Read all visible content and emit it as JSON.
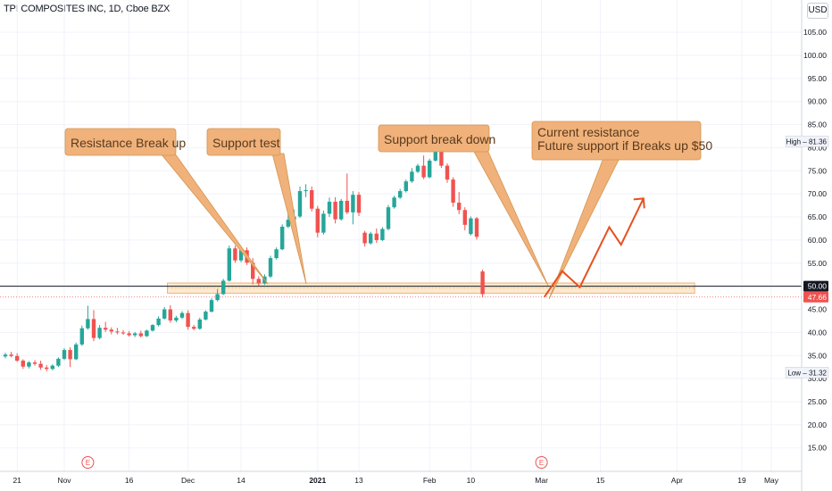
{
  "header": {
    "symbol_line": "TPI COMPOSITES INC, 1D, Cboe BZX"
  },
  "currency_button": "USD",
  "colors": {
    "up": "#26a69a",
    "down": "#ef5350",
    "callout_fill": "#f0b27a",
    "callout_stroke": "#d4934f",
    "zone_fill": "#fde9cf",
    "arrow": "#e8501f",
    "price_line": "#131722"
  },
  "chart_data": {
    "type": "candlestick",
    "title": "TPI COMPOSITES INC, 1D, Cboe BZX",
    "ylim": [
      10.5,
      108.5
    ],
    "y_ticks": [
      15,
      20,
      25,
      30,
      35,
      40,
      45,
      50,
      55,
      60,
      65,
      70,
      75,
      80,
      85,
      90,
      95,
      100,
      105
    ],
    "y_tick_labels": [
      "15.00",
      "20.00",
      "25.00",
      "30.00",
      "35.00",
      "40.00",
      "45.00",
      "50.00",
      "55.00",
      "60.00",
      "65.00",
      "70.00",
      "75.00",
      "80.00",
      "85.00",
      "90.00",
      "95.00",
      "100.00",
      "105.00"
    ],
    "x_ticks": [
      {
        "label": "21",
        "bar": 2
      },
      {
        "label": "Nov",
        "bar": 10
      },
      {
        "label": "16",
        "bar": 21
      },
      {
        "label": "Dec",
        "bar": 31
      },
      {
        "label": "14",
        "bar": 40
      },
      {
        "label": "2021",
        "bar": 53
      },
      {
        "label": "13",
        "bar": 60
      },
      {
        "label": "Feb",
        "bar": 72
      },
      {
        "label": "10",
        "bar": 79
      },
      {
        "label": "Mar",
        "bar": 91
      },
      {
        "label": "15",
        "bar": 101
      },
      {
        "label": "Apr",
        "bar": 114
      },
      {
        "label": "19",
        "bar": 125
      },
      {
        "label": "May",
        "bar": 130
      }
    ],
    "x_bar_range": [
      0,
      136
    ],
    "bars": [
      {
        "o": 34.8,
        "h": 35.6,
        "l": 34.4,
        "c": 35.2
      },
      {
        "o": 35.2,
        "h": 35.8,
        "l": 34.6,
        "c": 34.9
      },
      {
        "o": 34.9,
        "h": 35.5,
        "l": 33.6,
        "c": 33.9
      },
      {
        "o": 33.9,
        "h": 34.2,
        "l": 32.1,
        "c": 32.6
      },
      {
        "o": 32.6,
        "h": 33.8,
        "l": 32.2,
        "c": 33.5
      },
      {
        "o": 33.5,
        "h": 34.0,
        "l": 32.8,
        "c": 33.2
      },
      {
        "o": 33.2,
        "h": 33.9,
        "l": 31.9,
        "c": 32.4
      },
      {
        "o": 32.4,
        "h": 32.9,
        "l": 31.6,
        "c": 32.1
      },
      {
        "o": 32.1,
        "h": 33.1,
        "l": 31.8,
        "c": 32.8
      },
      {
        "o": 32.8,
        "h": 34.6,
        "l": 32.5,
        "c": 34.3
      },
      {
        "o": 34.3,
        "h": 36.6,
        "l": 34.0,
        "c": 36.2
      },
      {
        "o": 36.2,
        "h": 36.8,
        "l": 32.5,
        "c": 34.2
      },
      {
        "o": 34.2,
        "h": 37.8,
        "l": 34.0,
        "c": 37.4
      },
      {
        "o": 37.4,
        "h": 41.5,
        "l": 37.1,
        "c": 40.9
      },
      {
        "o": 40.9,
        "h": 45.8,
        "l": 40.6,
        "c": 42.9
      },
      {
        "o": 42.9,
        "h": 44.8,
        "l": 38.1,
        "c": 38.8
      },
      {
        "o": 38.8,
        "h": 41.6,
        "l": 38.5,
        "c": 41.0
      },
      {
        "o": 41.0,
        "h": 42.3,
        "l": 40.1,
        "c": 40.6
      },
      {
        "o": 40.6,
        "h": 41.1,
        "l": 39.6,
        "c": 40.2
      },
      {
        "o": 40.2,
        "h": 41.0,
        "l": 39.6,
        "c": 40.0
      },
      {
        "o": 40.0,
        "h": 40.5,
        "l": 39.5,
        "c": 39.8
      },
      {
        "o": 39.8,
        "h": 40.3,
        "l": 39.1,
        "c": 39.4
      },
      {
        "o": 39.4,
        "h": 40.1,
        "l": 39.0,
        "c": 39.8
      },
      {
        "o": 39.8,
        "h": 40.4,
        "l": 38.9,
        "c": 39.2
      },
      {
        "o": 39.2,
        "h": 40.6,
        "l": 39.0,
        "c": 40.4
      },
      {
        "o": 40.4,
        "h": 41.8,
        "l": 40.2,
        "c": 41.6
      },
      {
        "o": 41.6,
        "h": 43.5,
        "l": 41.3,
        "c": 43.0
      },
      {
        "o": 43.0,
        "h": 45.5,
        "l": 42.8,
        "c": 45.0
      },
      {
        "o": 45.0,
        "h": 45.9,
        "l": 42.1,
        "c": 42.6
      },
      {
        "o": 42.6,
        "h": 43.6,
        "l": 42.2,
        "c": 43.2
      },
      {
        "o": 43.2,
        "h": 44.6,
        "l": 42.9,
        "c": 44.2
      },
      {
        "o": 44.2,
        "h": 44.8,
        "l": 40.6,
        "c": 41.2
      },
      {
        "o": 41.2,
        "h": 41.6,
        "l": 40.5,
        "c": 40.8
      },
      {
        "o": 40.8,
        "h": 43.2,
        "l": 40.6,
        "c": 42.8
      },
      {
        "o": 42.8,
        "h": 44.8,
        "l": 42.6,
        "c": 44.5
      },
      {
        "o": 44.5,
        "h": 47.4,
        "l": 44.3,
        "c": 47.0
      },
      {
        "o": 47.0,
        "h": 49.4,
        "l": 46.7,
        "c": 48.3
      },
      {
        "o": 48.3,
        "h": 51.6,
        "l": 48.1,
        "c": 51.2
      },
      {
        "o": 51.2,
        "h": 58.8,
        "l": 51.0,
        "c": 58.2
      },
      {
        "o": 58.2,
        "h": 58.8,
        "l": 55.1,
        "c": 55.6
      },
      {
        "o": 55.6,
        "h": 58.6,
        "l": 55.2,
        "c": 57.8
      },
      {
        "o": 57.8,
        "h": 58.4,
        "l": 54.6,
        "c": 55.1
      },
      {
        "o": 55.1,
        "h": 56.1,
        "l": 50.4,
        "c": 51.6
      },
      {
        "o": 51.6,
        "h": 52.2,
        "l": 50.1,
        "c": 50.6
      },
      {
        "o": 50.6,
        "h": 52.6,
        "l": 50.3,
        "c": 52.1
      },
      {
        "o": 52.1,
        "h": 56.6,
        "l": 51.8,
        "c": 56.1
      },
      {
        "o": 56.1,
        "h": 58.4,
        "l": 55.8,
        "c": 58.0
      },
      {
        "o": 58.0,
        "h": 63.4,
        "l": 57.8,
        "c": 62.9
      },
      {
        "o": 62.9,
        "h": 67.4,
        "l": 62.6,
        "c": 64.4
      },
      {
        "o": 64.4,
        "h": 66.6,
        "l": 62.8,
        "c": 65.1
      },
      {
        "o": 65.1,
        "h": 71.6,
        "l": 64.8,
        "c": 70.6
      },
      {
        "o": 70.6,
        "h": 72.1,
        "l": 69.3,
        "c": 70.8
      },
      {
        "o": 70.8,
        "h": 71.6,
        "l": 66.2,
        "c": 66.8
      },
      {
        "o": 66.8,
        "h": 67.4,
        "l": 60.6,
        "c": 61.6
      },
      {
        "o": 61.6,
        "h": 66.4,
        "l": 61.2,
        "c": 65.7
      },
      {
        "o": 65.7,
        "h": 69.2,
        "l": 65.0,
        "c": 68.3
      },
      {
        "o": 68.3,
        "h": 69.3,
        "l": 63.6,
        "c": 64.5
      },
      {
        "o": 64.5,
        "h": 68.9,
        "l": 64.2,
        "c": 68.5
      },
      {
        "o": 68.5,
        "h": 74.4,
        "l": 65.6,
        "c": 66.0
      },
      {
        "o": 66.0,
        "h": 70.6,
        "l": 63.4,
        "c": 69.8
      },
      {
        "o": 69.8,
        "h": 70.4,
        "l": 65.2,
        "c": 65.9
      },
      {
        "o": 61.6,
        "h": 62.0,
        "l": 58.6,
        "c": 59.3
      },
      {
        "o": 59.3,
        "h": 61.8,
        "l": 59.0,
        "c": 61.4
      },
      {
        "o": 61.4,
        "h": 62.5,
        "l": 59.4,
        "c": 60.0
      },
      {
        "o": 60.0,
        "h": 62.8,
        "l": 59.8,
        "c": 62.4
      },
      {
        "o": 62.4,
        "h": 67.6,
        "l": 62.1,
        "c": 67.1
      },
      {
        "o": 67.1,
        "h": 69.6,
        "l": 66.8,
        "c": 69.2
      },
      {
        "o": 69.2,
        "h": 71.1,
        "l": 68.9,
        "c": 70.6
      },
      {
        "o": 70.6,
        "h": 73.1,
        "l": 70.3,
        "c": 72.7
      },
      {
        "o": 72.7,
        "h": 75.6,
        "l": 72.4,
        "c": 74.8
      },
      {
        "o": 74.8,
        "h": 76.5,
        "l": 74.5,
        "c": 76.1
      },
      {
        "o": 76.1,
        "h": 78.3,
        "l": 73.2,
        "c": 73.6
      },
      {
        "o": 73.6,
        "h": 77.6,
        "l": 73.4,
        "c": 77.2
      },
      {
        "o": 77.2,
        "h": 80.6,
        "l": 77.0,
        "c": 80.1
      },
      {
        "o": 80.1,
        "h": 81.4,
        "l": 75.6,
        "c": 76.1
      },
      {
        "o": 76.1,
        "h": 76.6,
        "l": 72.4,
        "c": 73.1
      },
      {
        "o": 73.1,
        "h": 73.6,
        "l": 67.2,
        "c": 68.1
      },
      {
        "o": 68.1,
        "h": 70.4,
        "l": 65.6,
        "c": 66.5
      },
      {
        "o": 66.5,
        "h": 67.1,
        "l": 62.1,
        "c": 63.3
      },
      {
        "o": 61.3,
        "h": 65.1,
        "l": 61.0,
        "c": 64.7
      },
      {
        "o": 64.7,
        "h": 65.0,
        "l": 60.1,
        "c": 60.7
      },
      {
        "o": 53.2,
        "h": 53.6,
        "l": 47.6,
        "c": 48.3
      }
    ],
    "bar_index_start": [
      0
    ],
    "price_lines": [
      {
        "label": "50.00",
        "value": 50.0
      },
      {
        "label": "47.66",
        "value": 47.66
      }
    ],
    "stat_labels": [
      {
        "text": "High – 81.36",
        "value": 81.36
      },
      {
        "text": "Low – 31.32",
        "value": 31.32
      }
    ],
    "zone": {
      "from": 48.5,
      "to": 50.7
    },
    "earnings_markers": [
      "E",
      "E"
    ],
    "annotations": [
      {
        "id": "callout-1",
        "lines": [
          "Resistance Break up"
        ]
      },
      {
        "id": "callout-2",
        "lines": [
          "Support test"
        ]
      },
      {
        "id": "callout-3",
        "lines": [
          "Support break down"
        ]
      },
      {
        "id": "callout-4",
        "lines": [
          "Current resistance",
          "Future support if Breaks up $50"
        ]
      }
    ],
    "projection_path": [
      {
        "bar": 91.5,
        "y": 47.7
      },
      {
        "bar": 94.5,
        "y": 53.3
      },
      {
        "bar": 97.5,
        "y": 49.8
      },
      {
        "bar": 102.5,
        "y": 62.8
      },
      {
        "bar": 104.5,
        "y": 59.0
      },
      {
        "bar": 108.3,
        "y": 69.0
      }
    ]
  }
}
